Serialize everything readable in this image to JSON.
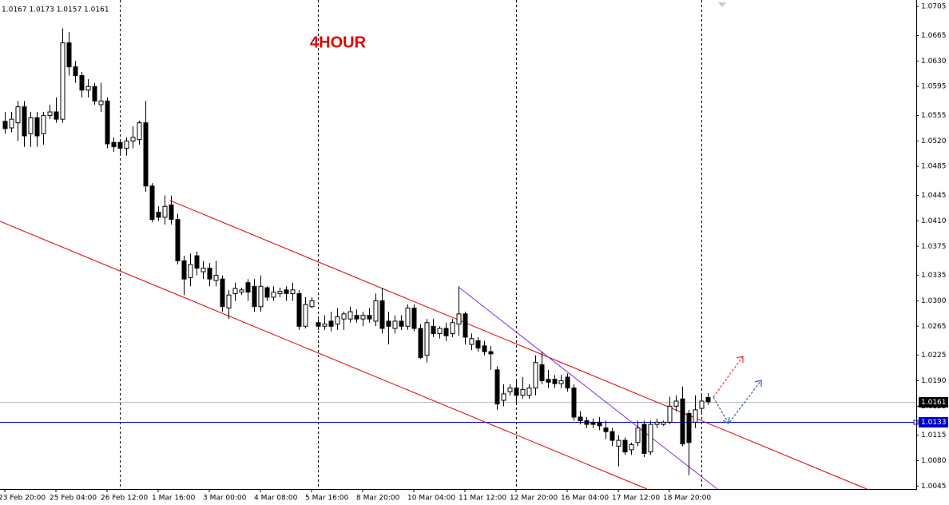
{
  "chart_data": {
    "type": "candlestick",
    "ohlc_text": "1.0167 1.0173 1.0157 1.0161",
    "annotation": "4HOUR",
    "up_color": "#ffffff",
    "down_color": "#000000",
    "wick_color": "#000000",
    "ylim": [
      1.0041,
      1.0714
    ],
    "yticks": [
      1.0705,
      1.0665,
      {
        "value": 1.063,
        "label": "1.0630"
      },
      1.0595,
      1.0555,
      {
        "value": 1.052,
        "label": "1.0520"
      },
      1.0485,
      1.0445,
      {
        "value": 1.041,
        "label": "1.0410"
      },
      1.0375,
      1.0335,
      {
        "value": 1.03,
        "label": "1.0300"
      },
      1.0265,
      1.0225,
      {
        "value": 1.019,
        "label": "1.0190"
      },
      1.0155,
      1.0115,
      {
        "value": 1.008,
        "label": "1.0080"
      },
      1.0045
    ],
    "hlines": [
      {
        "value": 1.0161,
        "color": "#c0c0c0",
        "label_color": "#000000"
      },
      {
        "value": 1.0133,
        "color": "#0000cd",
        "label_color": "#0000cd"
      }
    ],
    "categories": [
      "23 Feb 20:00",
      null,
      null,
      null,
      null,
      null,
      null,
      null,
      "25 Feb 04:00",
      null,
      null,
      null,
      null,
      null,
      null,
      null,
      "26 Feb 12:00",
      null,
      null,
      null,
      null,
      null,
      null,
      null,
      "1 Mar 16:00",
      null,
      null,
      null,
      null,
      null,
      null,
      null,
      "3 Mar 00:00",
      null,
      null,
      null,
      null,
      null,
      null,
      null,
      "4 Mar 08:00",
      null,
      null,
      null,
      null,
      null,
      null,
      null,
      "5 Mar 16:00",
      null,
      null,
      null,
      null,
      null,
      null,
      null,
      "8 Mar 20:00",
      null,
      null,
      null,
      null,
      null,
      null,
      null,
      "10 Mar 04:00",
      null,
      null,
      null,
      null,
      null,
      null,
      null,
      "11 Mar 12:00",
      null,
      null,
      null,
      null,
      null,
      null,
      null,
      "12 Mar 20:00",
      null,
      null,
      null,
      null,
      null,
      null,
      null,
      "16 Mar 04:00",
      null,
      null,
      null,
      null,
      null,
      null,
      null,
      "17 Mar 12:00",
      null,
      null,
      null,
      null,
      null,
      null,
      null,
      "18 Mar 20:00",
      null,
      null,
      null,
      null,
      null,
      null
    ],
    "open": [
      1.0547,
      1.0538,
      1.0545,
      1.0567,
      1.053,
      1.0552,
      1.053,
      1.0555,
      1.056,
      1.055,
      1.0655,
      1.0622,
      1.061,
      1.059,
      1.0595,
      1.057,
      1.0575,
      1.0518,
      1.0518,
      1.051,
      1.052,
      1.0522,
      1.0545,
      1.0458,
      1.0422,
      1.0415,
      1.0432,
      1.0412,
      1.0355,
      1.0332,
      1.0362,
      1.034,
      1.0345,
      1.0328,
      1.033,
      1.029,
      1.031,
      1.0312,
      1.0325,
      1.032,
      1.0292,
      1.0318,
      1.0305,
      1.031,
      1.0315,
      1.031,
      1.031,
      1.0265,
      1.0292,
      1.027,
      1.0265,
      1.0272,
      1.0268,
      1.0275,
      1.0275,
      1.028,
      1.0275,
      1.028,
      1.0272,
      1.03,
      1.0272,
      1.0262,
      1.0272,
      1.0265,
      1.029,
      1.0262,
      1.0225,
      1.0265,
      1.0255,
      1.0262,
      1.0255,
      1.0268,
      1.0282,
      1.024,
      1.0245,
      1.0238,
      1.023,
      1.0205,
      1.0163,
      1.0175,
      1.018,
      1.017,
      1.017,
      1.018,
      1.0212,
      1.0192,
      1.0192,
      1.0186,
      1.0195,
      1.018,
      1.014,
      1.0135,
      1.0133,
      1.0133,
      1.0125,
      1.012,
      1.01,
      1.0108,
      1.0095,
      1.0105,
      1.013,
      1.0092,
      1.013,
      1.013,
      1.0133,
      1.0155,
      1.0165,
      1.0145,
      1.0133,
      1.0152,
      1.0167
    ],
    "high": [
      1.056,
      1.056,
      1.0575,
      1.0575,
      1.056,
      1.056,
      1.056,
      1.057,
      1.058,
      1.0675,
      1.067,
      1.063,
      1.0615,
      1.0605,
      1.06,
      1.06,
      1.058,
      1.0525,
      1.0522,
      1.0525,
      1.054,
      1.0548,
      1.0575,
      1.0462,
      1.043,
      1.0445,
      1.0445,
      1.042,
      1.0362,
      1.0365,
      1.0368,
      1.0355,
      1.0352,
      1.0355,
      1.0335,
      1.0315,
      1.0325,
      1.0318,
      1.033,
      1.033,
      1.0335,
      1.032,
      1.032,
      1.0318,
      1.032,
      1.0325,
      1.0315,
      1.0305,
      1.0305,
      1.0275,
      1.028,
      1.0285,
      1.029,
      1.0285,
      1.0292,
      1.0288,
      1.0285,
      1.029,
      1.031,
      1.0318,
      1.0285,
      1.028,
      1.028,
      1.0295,
      1.0295,
      1.0268,
      1.0275,
      1.0275,
      1.0265,
      1.027,
      1.0275,
      1.032,
      1.0285,
      1.0255,
      1.025,
      1.0245,
      1.0238,
      1.021,
      1.0185,
      1.0185,
      1.019,
      1.0195,
      1.0185,
      1.0225,
      1.023,
      1.0205,
      1.0198,
      1.0198,
      1.02,
      1.0185,
      1.0148,
      1.014,
      1.0138,
      1.014,
      1.0135,
      1.0125,
      1.0115,
      1.0112,
      1.0105,
      1.0135,
      1.0135,
      1.0135,
      1.0138,
      1.0135,
      1.0168,
      1.017,
      1.0182,
      1.015,
      1.017,
      1.017,
      1.0173
    ],
    "low": [
      1.053,
      1.0532,
      1.052,
      1.0512,
      1.0512,
      1.0512,
      1.0515,
      1.055,
      1.0545,
      1.0545,
      1.061,
      1.06,
      1.058,
      1.058,
      1.057,
      1.056,
      1.051,
      1.0505,
      1.05,
      1.05,
      1.051,
      1.0515,
      1.045,
      1.0408,
      1.041,
      1.0405,
      1.0405,
      1.035,
      1.0308,
      1.032,
      1.0335,
      1.033,
      1.032,
      1.032,
      1.0285,
      1.0275,
      1.03,
      1.0308,
      1.03,
      1.0285,
      1.0285,
      1.03,
      1.03,
      1.0305,
      1.03,
      1.03,
      1.026,
      1.0262,
      1.029,
      1.026,
      1.026,
      1.0258,
      1.026,
      1.026,
      1.027,
      1.027,
      1.0265,
      1.027,
      1.0265,
      1.0255,
      1.024,
      1.0255,
      1.026,
      1.026,
      1.0258,
      1.022,
      1.0215,
      1.025,
      1.0248,
      1.0245,
      1.025,
      1.0252,
      1.024,
      1.0232,
      1.023,
      1.0225,
      1.0205,
      1.015,
      1.0155,
      1.017,
      1.016,
      1.0165,
      1.0165,
      1.017,
      1.0185,
      1.018,
      1.018,
      1.018,
      1.0175,
      1.0135,
      1.013,
      1.0125,
      1.0125,
      1.0122,
      1.011,
      1.01,
      1.0072,
      1.0088,
      1.0088,
      1.01,
      1.0085,
      1.0088,
      1.0125,
      1.0128,
      1.013,
      1.0148,
      1.01,
      1.006,
      1.0125,
      1.0145,
      1.0157
    ],
    "close": [
      1.0537,
      1.055,
      1.0567,
      1.0527,
      1.0552,
      1.0527,
      1.0555,
      1.056,
      1.055,
      1.0655,
      1.0622,
      1.061,
      1.059,
      1.0595,
      1.0575,
      1.0575,
      1.0516,
      1.0512,
      1.051,
      1.052,
      1.0525,
      1.0545,
      1.0458,
      1.0412,
      1.0415,
      1.043,
      1.0412,
      1.0355,
      1.033,
      1.035,
      1.0345,
      1.0345,
      1.033,
      1.0335,
      1.0292,
      1.0308,
      1.0317,
      1.0315,
      1.0312,
      1.0292,
      1.032,
      1.0305,
      1.0312,
      1.0313,
      1.031,
      1.0315,
      1.0265,
      1.0295,
      1.03,
      1.0265,
      1.0268,
      1.0265,
      1.0278,
      1.0282,
      1.0285,
      1.0275,
      1.028,
      1.0275,
      1.03,
      1.0262,
      1.0265,
      1.0272,
      1.0265,
      1.029,
      1.0262,
      1.0222,
      1.027,
      1.0255,
      1.0262,
      1.0252,
      1.027,
      1.0282,
      1.025,
      1.0248,
      1.0235,
      1.023,
      1.0227,
      1.0158,
      1.0172,
      1.018,
      1.017,
      1.0178,
      1.018,
      1.0215,
      1.019,
      1.0188,
      1.0186,
      1.019,
      1.018,
      1.014,
      1.0135,
      1.013,
      1.013,
      1.0128,
      1.012,
      1.0108,
      1.0108,
      1.0092,
      1.0102,
      1.0125,
      1.009,
      1.013,
      1.0133,
      1.0133,
      1.0155,
      1.0162,
      1.0103,
      1.0105,
      1.015,
      1.0162,
      1.0161
    ]
  }
}
